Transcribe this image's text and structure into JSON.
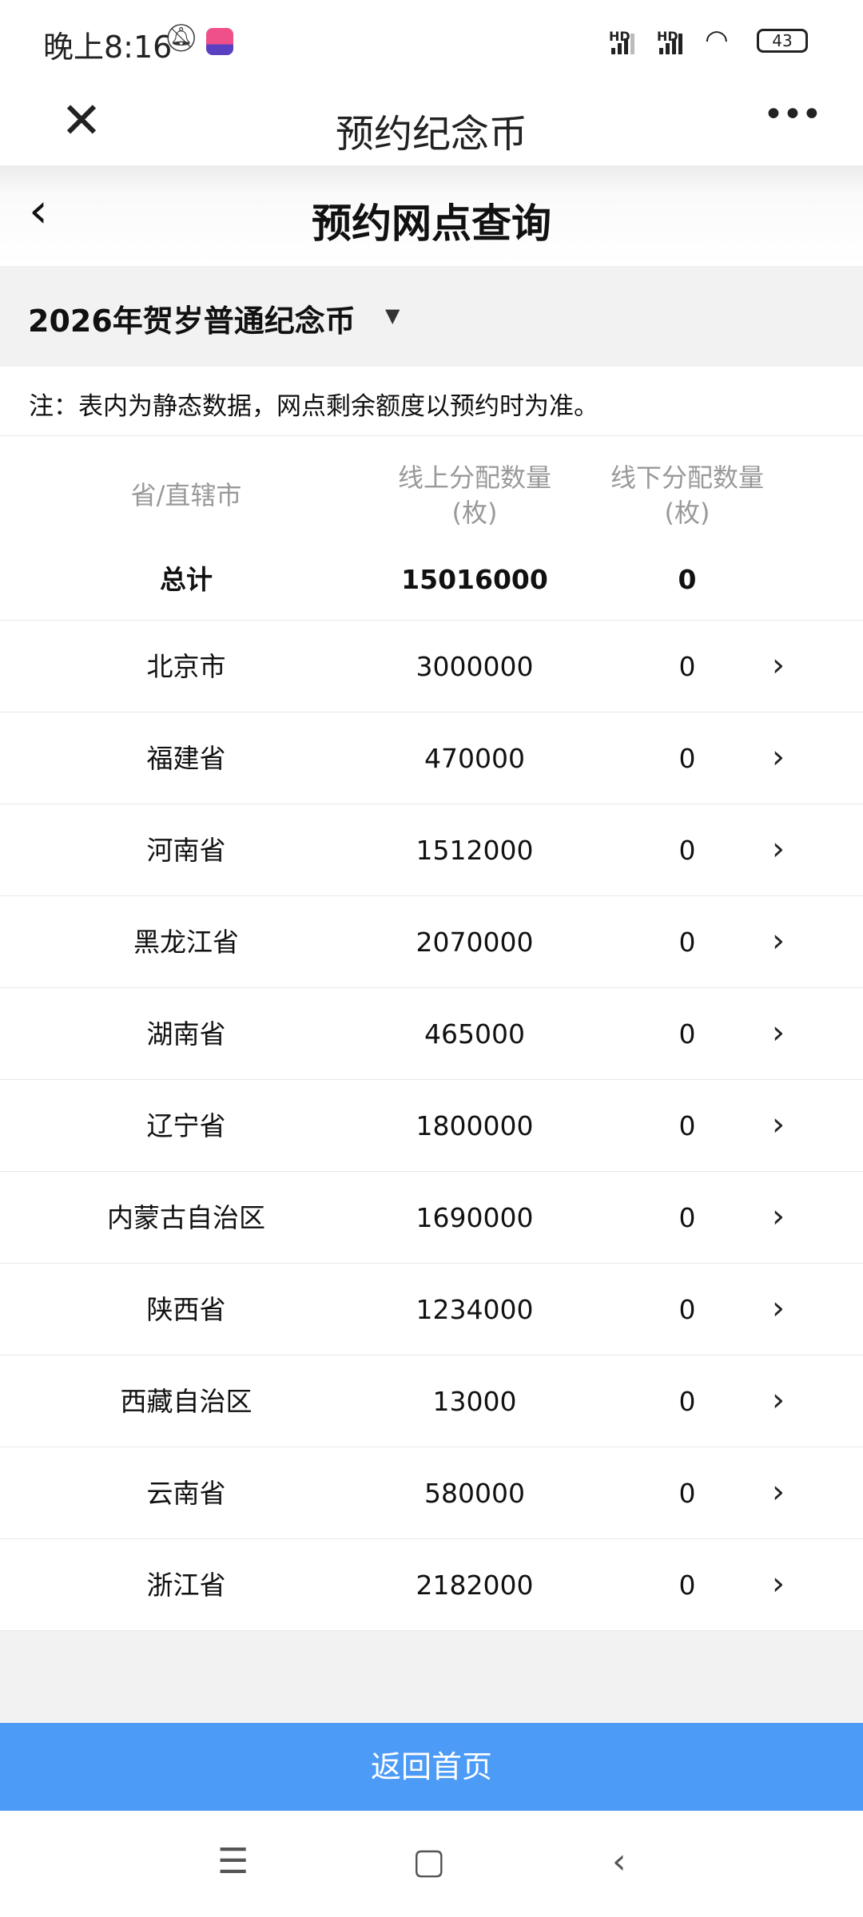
{
  "status": {
    "time": "晚上8:16",
    "sim1": "HD",
    "sim2": "HD",
    "battery": "43"
  },
  "window": {
    "title": "预约纪念币",
    "close": "✕",
    "more": "•••"
  },
  "page": {
    "title": "预约网点查询"
  },
  "selector": {
    "value": "2026年贺岁普通纪念币"
  },
  "note": "注：表内为静态数据，网点剩余额度以预约时为准。",
  "table": {
    "headers": [
      {
        "l1": "省/直辖市",
        "l2": ""
      },
      {
        "l1": "线上分配数量",
        "l2": "(枚)"
      },
      {
        "l1": "线下分配数量",
        "l2": "(枚)"
      }
    ],
    "total": {
      "label": "总计",
      "online": "15016000",
      "offline": "0"
    },
    "rows": [
      {
        "name": "北京市",
        "online": "3000000",
        "offline": "0"
      },
      {
        "name": "福建省",
        "online": "470000",
        "offline": "0"
      },
      {
        "name": "河南省",
        "online": "1512000",
        "offline": "0"
      },
      {
        "name": "黑龙江省",
        "online": "2070000",
        "offline": "0"
      },
      {
        "name": "湖南省",
        "online": "465000",
        "offline": "0"
      },
      {
        "name": "辽宁省",
        "online": "1800000",
        "offline": "0"
      },
      {
        "name": "内蒙古自治区",
        "online": "1690000",
        "offline": "0"
      },
      {
        "name": "陕西省",
        "online": "1234000",
        "offline": "0"
      },
      {
        "name": "西藏自治区",
        "online": "13000",
        "offline": "0"
      },
      {
        "name": "云南省",
        "online": "580000",
        "offline": "0"
      },
      {
        "name": "浙江省",
        "online": "2182000",
        "offline": "0"
      }
    ]
  },
  "footer": {
    "button": "返回首页"
  },
  "colors": {
    "accent": "#4c9bf7"
  }
}
